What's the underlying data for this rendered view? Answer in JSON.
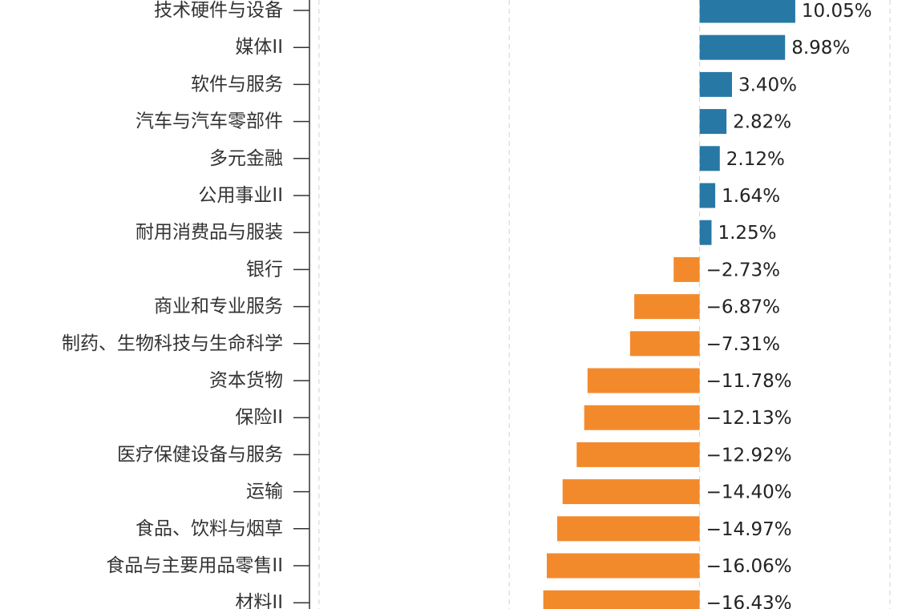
{
  "chart_data": {
    "type": "bar",
    "orientation": "horizontal",
    "categories": [
      "技术硬件与设备",
      "媒体II",
      "软件与服务",
      "汽车与汽车零部件",
      "多元金融",
      "公用事业II",
      "耐用消费品与服装",
      "银行",
      "商业和专业服务",
      "制药、生物科技与生命科学",
      "资本货物",
      "保险II",
      "医疗保健设备与服务",
      "运输",
      "食品、饮料与烟草",
      "食品与主要用品零售II",
      "材料II"
    ],
    "values": [
      10.05,
      8.98,
      3.4,
      2.82,
      2.12,
      1.64,
      1.25,
      -2.73,
      -6.87,
      -7.31,
      -11.78,
      -12.13,
      -12.92,
      -14.4,
      -14.97,
      -16.06,
      -16.43
    ],
    "value_labels": [
      "10.05%",
      "8.98%",
      "3.40%",
      "2.82%",
      "2.12%",
      "1.64%",
      "1.25%",
      "−2.73%",
      "−6.87%",
      "−7.31%",
      "−11.78%",
      "−12.13%",
      "−12.92%",
      "−14.40%",
      "−14.97%",
      "−16.06%",
      "−16.43%"
    ],
    "xlim": [
      -41,
      20
    ],
    "gridlines_x": [
      -40,
      -20,
      0,
      20
    ],
    "grid": true,
    "colors": {
      "positive": "#2878a6",
      "negative": "#f28a2c"
    }
  }
}
